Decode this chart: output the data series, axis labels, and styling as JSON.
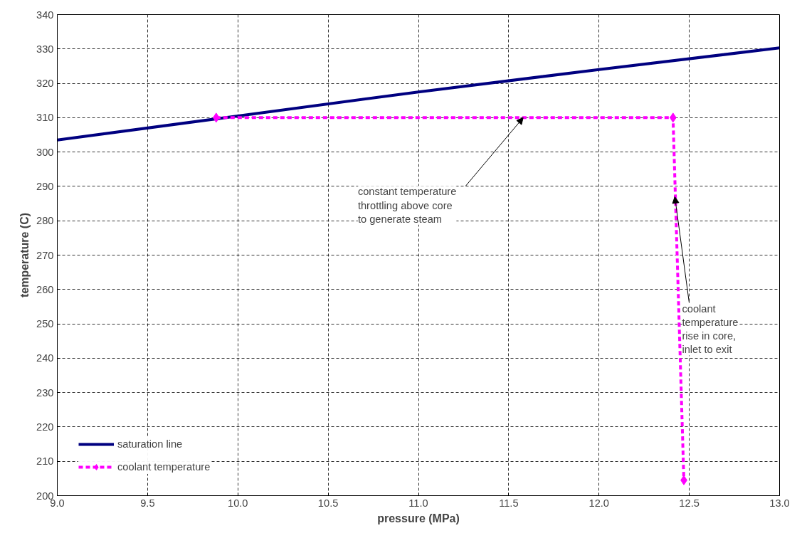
{
  "chart_data": {
    "type": "line",
    "xlabel": "pressure (MPa)",
    "ylabel": "temperature (C)",
    "xlim": [
      9.0,
      13.0
    ],
    "xticks": [
      {
        "value": 9.0,
        "label": "9.0"
      },
      {
        "value": 9.5,
        "label": "9.5"
      },
      {
        "value": 10.0,
        "label": "10.0"
      },
      {
        "value": 10.5,
        "label": "10.5"
      },
      {
        "value": 11.0,
        "label": "11.0"
      },
      {
        "value": 11.5,
        "label": "11.5"
      },
      {
        "value": 12.0,
        "label": "12.0"
      },
      {
        "value": 12.5,
        "label": "12.5"
      },
      {
        "value": 13.0,
        "label": "13.0"
      }
    ],
    "ylim": [
      200,
      340
    ],
    "yticks": [
      200,
      210,
      220,
      230,
      240,
      250,
      260,
      270,
      280,
      290,
      300,
      310,
      320,
      330,
      340
    ],
    "grid": true,
    "legend": "bottom left",
    "series": [
      {
        "name": "saturation line",
        "color": "#000080",
        "x": [
          9.0,
          10.0,
          11.0,
          12.0,
          13.0
        ],
        "values": [
          303.5,
          310.5,
          317.5,
          324,
          330.3
        ],
        "marker": "none",
        "line_style": "solid"
      },
      {
        "name": "coolant temperature",
        "color": "#ff00ff",
        "x": [
          9.88,
          12.41,
          12.47
        ],
        "values": [
          310,
          310,
          204.5
        ],
        "marker": "diamond",
        "line_style": "dashed"
      }
    ],
    "annotations": [
      {
        "text": "constant temperature\nthrottling above core\nto generate steam",
        "x": 11.58,
        "y": 310
      },
      {
        "text": "coolant\ntemperature\nrise in core,\ninlet to exit",
        "x": 12.42,
        "y": 287
      }
    ]
  }
}
